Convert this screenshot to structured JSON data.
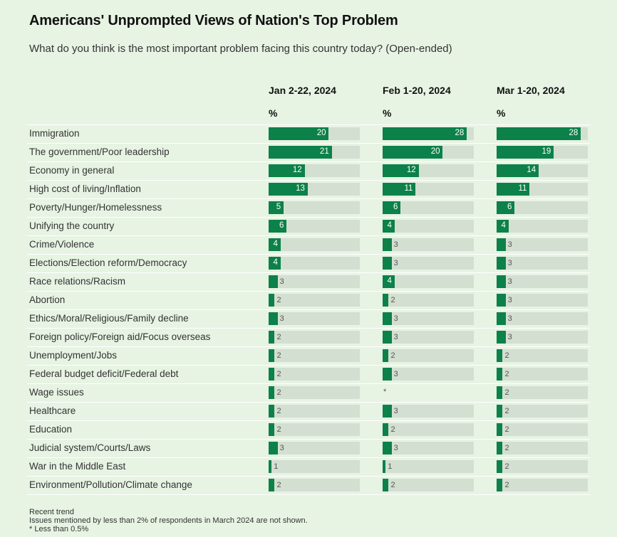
{
  "header": {
    "title": "Americans' Unprompted Views of Nation's Top Problem",
    "subtitle": "What do you think is the most important problem facing this country today? (Open-ended)"
  },
  "colors": {
    "bar": "#0c8149",
    "track": "#d3dfd1",
    "background": "#e7f3e3"
  },
  "chart_data": {
    "type": "bar",
    "orientation": "horizontal",
    "unit_label": "%",
    "xlim": [
      0,
      30
    ],
    "categories": [
      "Immigration",
      "The government/Poor leadership",
      "Economy in general",
      "High cost of living/Inflation",
      "Poverty/Hunger/Homelessness",
      "Unifying the country",
      "Crime/Violence",
      "Elections/Election reform/Democracy",
      "Race relations/Racism",
      "Abortion",
      "Ethics/Moral/Religious/Family decline",
      "Foreign policy/Foreign aid/Focus overseas",
      "Unemployment/Jobs",
      "Federal budget deficit/Federal debt",
      "Wage issues",
      "Healthcare",
      "Education",
      "Judicial system/Courts/Laws",
      "War in the Middle East",
      "Environment/Pollution/Climate change"
    ],
    "series": [
      {
        "name": "Jan 2-22, 2024",
        "values": [
          20,
          21,
          12,
          13,
          5,
          6,
          4,
          4,
          3,
          2,
          3,
          2,
          2,
          2,
          2,
          2,
          2,
          3,
          1,
          2
        ]
      },
      {
        "name": "Feb 1-20, 2024",
        "values": [
          28,
          20,
          12,
          11,
          6,
          4,
          3,
          3,
          4,
          2,
          3,
          3,
          2,
          3,
          "*",
          3,
          2,
          3,
          1,
          2
        ]
      },
      {
        "name": "Mar 1-20, 2024",
        "values": [
          28,
          19,
          14,
          11,
          6,
          4,
          3,
          3,
          3,
          3,
          3,
          3,
          2,
          2,
          2,
          2,
          2,
          2,
          2,
          2
        ]
      }
    ]
  },
  "footer": {
    "line1": "Recent trend",
    "line2": "Issues mentioned by less than 2% of respondents in March 2024 are not shown.",
    "line3": "* Less than 0.5%"
  }
}
